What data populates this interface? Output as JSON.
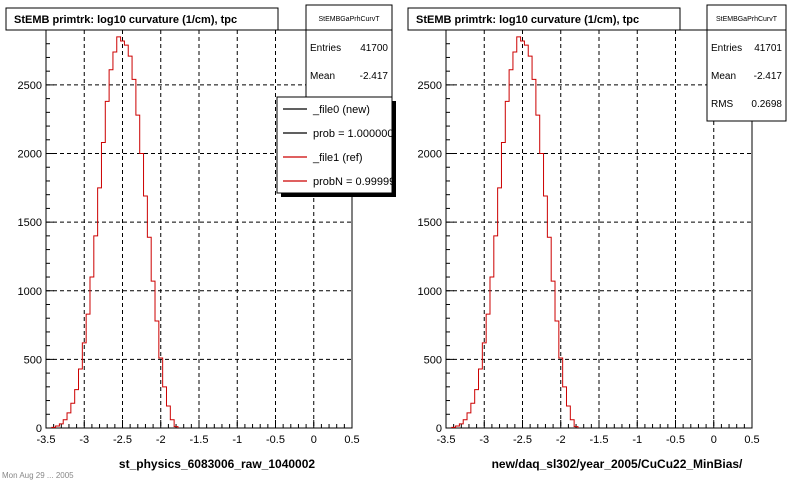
{
  "footer_text": "Mon Aug 29 ... 2005",
  "chart_data": [
    {
      "type": "histogram",
      "title": "StEMB primtrk: log10 curvature (1/cm), tpc",
      "xlabel": "st_physics_6083006_raw_1040002",
      "xlim": [
        -3.5,
        0.5
      ],
      "ylim": [
        0,
        2900
      ],
      "x_ticks": [
        "-3.5",
        "-3",
        "-2.5",
        "-2",
        "-1.5",
        "-1",
        "-0.5",
        "0",
        "0.5"
      ],
      "y_ticks": [
        "0",
        "500",
        "1000",
        "1500",
        "2000",
        "2500"
      ],
      "grid": true,
      "stats": {
        "name": "StEMBGaPrhCurvT",
        "rows": [
          {
            "label": "Entries",
            "value": "41700"
          },
          {
            "label": "Mean",
            "value": "-2.417"
          }
        ]
      },
      "legend": [
        {
          "label": "_file0 (new)",
          "color": "#000000"
        },
        {
          "label": "prob = 1.000000",
          "color": "#000000"
        },
        {
          "label": "_file1 (ref)",
          "color": "#cc0000"
        },
        {
          "label": "probN = 0.99999",
          "color": "#cc0000"
        }
      ],
      "series": [
        {
          "color": "#cc0000",
          "bin_width": 0.05,
          "x": [
            -3.4,
            -3.35,
            -3.3,
            -3.25,
            -3.2,
            -3.15,
            -3.1,
            -3.05,
            -3.0,
            -2.95,
            -2.9,
            -2.85,
            -2.8,
            -2.75,
            -2.7,
            -2.65,
            -2.6,
            -2.55,
            -2.5,
            -2.45,
            -2.4,
            -2.35,
            -2.3,
            -2.25,
            -2.2,
            -2.15,
            -2.1,
            -2.05,
            -2.0,
            -1.95,
            -1.9,
            -1.85,
            -1.8
          ],
          "values": [
            5,
            15,
            30,
            60,
            110,
            180,
            280,
            430,
            620,
            830,
            1100,
            1400,
            1750,
            2080,
            2380,
            2610,
            2740,
            2850,
            2820,
            2790,
            2710,
            2540,
            2280,
            2000,
            1690,
            1390,
            1070,
            780,
            510,
            300,
            160,
            60,
            10
          ]
        }
      ]
    },
    {
      "type": "histogram",
      "title": "StEMB primtrk: log10 curvature (1/cm), tpc",
      "xlabel": "new/daq_sl302/year_2005/CuCu22_MinBias/",
      "xlim": [
        -3.5,
        0.5
      ],
      "ylim": [
        0,
        2900
      ],
      "x_ticks": [
        "-3.5",
        "-3",
        "-2.5",
        "-2",
        "-1.5",
        "-1",
        "-0.5",
        "0",
        "0.5"
      ],
      "y_ticks": [
        "0",
        "500",
        "1000",
        "1500",
        "2000",
        "2500"
      ],
      "grid": true,
      "stats": {
        "name": "StEMBGaPrhCurvT",
        "rows": [
          {
            "label": "Entries",
            "value": "41701"
          },
          {
            "label": "Mean",
            "value": "-2.417"
          },
          {
            "label": "RMS",
            "value": "0.2698"
          }
        ]
      },
      "legend": [],
      "series": [
        {
          "color": "#cc0000",
          "bin_width": 0.05,
          "x": [
            -3.4,
            -3.35,
            -3.3,
            -3.25,
            -3.2,
            -3.15,
            -3.1,
            -3.05,
            -3.0,
            -2.95,
            -2.9,
            -2.85,
            -2.8,
            -2.75,
            -2.7,
            -2.65,
            -2.6,
            -2.55,
            -2.5,
            -2.45,
            -2.4,
            -2.35,
            -2.3,
            -2.25,
            -2.2,
            -2.15,
            -2.1,
            -2.05,
            -2.0,
            -1.95,
            -1.9,
            -1.85,
            -1.8
          ],
          "values": [
            5,
            15,
            30,
            60,
            110,
            180,
            280,
            430,
            620,
            830,
            1100,
            1400,
            1750,
            2080,
            2380,
            2610,
            2740,
            2850,
            2820,
            2790,
            2710,
            2540,
            2280,
            2000,
            1690,
            1390,
            1070,
            780,
            510,
            300,
            160,
            60,
            10
          ]
        }
      ]
    }
  ]
}
